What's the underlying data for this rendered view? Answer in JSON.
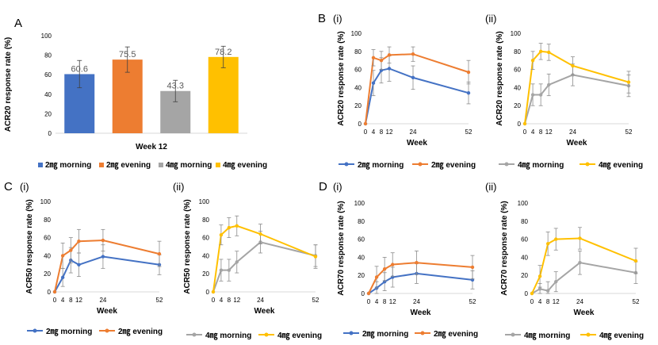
{
  "panel_labels": {
    "a": "A",
    "b": "B",
    "b_i": "(i)",
    "b_ii": "(ii)",
    "c": "C",
    "c_i": "(i)",
    "c_ii": "(ii)",
    "d": "D",
    "d_i": "(i)",
    "d_ii": "(ii)"
  },
  "colors": {
    "2mg_morning": "#4472c4",
    "2mg_evening": "#ed7d31",
    "4mg_morning": "#a5a5a5",
    "4mg_evening": "#ffc000",
    "axis": "#d9d9d9",
    "text": "#000000",
    "tick": "#595959"
  },
  "chart_data": [
    {
      "id": "A",
      "type": "bar",
      "categories": [
        "2㎎ morning",
        "2㎎ evening",
        "4㎎ morning",
        "4㎎ evening"
      ],
      "values": [
        60.6,
        75.5,
        43.3,
        78.2
      ],
      "data_labels": [
        "60.6",
        "75.5",
        "43.3",
        "78.2"
      ],
      "errors": [
        14,
        13,
        11,
        11
      ],
      "color_keys": [
        "2mg_morning",
        "2mg_evening",
        "4mg_morning",
        "4mg_evening"
      ],
      "xlabel": "Week 12",
      "ylabel": "ACR20 response rate (%)",
      "ylim": [
        0,
        100
      ],
      "yticks": [
        0,
        20,
        40,
        60,
        80,
        100
      ],
      "legend": [
        "2㎎ morning",
        "2㎎ evening",
        "4㎎ morning",
        "4㎎ evening"
      ],
      "legend_position": "bottom"
    },
    {
      "id": "B-i",
      "type": "line",
      "x": [
        0,
        4,
        8,
        12,
        24,
        52
      ],
      "xticks": [
        "0",
        "4",
        "8",
        "12",
        "24",
        "52"
      ],
      "xlabel": "Week",
      "ylabel": "ACR20 response rate (%)",
      "ylim": [
        0,
        100
      ],
      "yticks": [
        0,
        20,
        40,
        60,
        80,
        100
      ],
      "series": [
        {
          "name": "2㎎ morning",
          "color_key": "2mg_morning",
          "values": [
            0,
            45,
            59,
            61,
            51,
            34
          ],
          "errors": [
            0,
            14,
            14,
            14,
            13,
            12
          ]
        },
        {
          "name": "2㎎ evening",
          "color_key": "2mg_evening",
          "values": [
            0,
            73,
            70,
            76,
            77,
            57
          ],
          "errors": [
            0,
            9,
            10,
            9,
            8,
            13
          ]
        }
      ],
      "legend_position": "bottom"
    },
    {
      "id": "B-ii",
      "type": "line",
      "x": [
        0,
        4,
        8,
        12,
        24,
        52
      ],
      "xticks": [
        "0",
        "4",
        "8",
        "12",
        "24",
        "52"
      ],
      "xlabel": "Week",
      "ylabel": "ACR20 response rate (%)",
      "ylim": [
        0,
        100
      ],
      "yticks": [
        0,
        20,
        40,
        60,
        80,
        100
      ],
      "series": [
        {
          "name": "4㎎ morning",
          "color_key": "4mg_morning",
          "values": [
            0,
            32,
            32,
            43,
            54,
            42
          ],
          "errors": [
            0,
            12,
            12,
            12,
            12,
            12
          ]
        },
        {
          "name": "4㎎ evening",
          "color_key": "4mg_evening",
          "values": [
            0,
            70,
            80,
            79,
            64,
            46
          ],
          "errors": [
            0,
            10,
            9,
            9,
            10,
            12
          ]
        }
      ],
      "legend_position": "bottom"
    },
    {
      "id": "C-i",
      "type": "line",
      "x": [
        0,
        4,
        8,
        12,
        24,
        52
      ],
      "xticks": [
        "0",
        "4",
        "8",
        "12",
        "24",
        "52"
      ],
      "xlabel": "Week",
      "ylabel": "ACR50 response rate (%)",
      "ylim": [
        0,
        100
      ],
      "yticks": [
        0,
        20,
        40,
        60,
        80,
        100
      ],
      "series": [
        {
          "name": "2㎎ morning",
          "color_key": "2mg_morning",
          "values": [
            0,
            16,
            35,
            30,
            39,
            30
          ],
          "errors": [
            0,
            10,
            14,
            13,
            13,
            11
          ]
        },
        {
          "name": "2㎎ evening",
          "color_key": "2mg_evening",
          "values": [
            0,
            40,
            46,
            56,
            57,
            42
          ],
          "errors": [
            0,
            14,
            14,
            13,
            12,
            14
          ]
        }
      ],
      "legend_position": "bottom"
    },
    {
      "id": "C-ii",
      "type": "line",
      "x": [
        0,
        4,
        8,
        12,
        24,
        52
      ],
      "xticks": [
        "0",
        "4",
        "8",
        "12",
        "24",
        "52"
      ],
      "xlabel": "Week",
      "ylabel": "ACR50 response rate (%)",
      "ylim": [
        0,
        100
      ],
      "yticks": [
        0,
        20,
        40,
        60,
        80,
        100
      ],
      "series": [
        {
          "name": "4㎎ morning",
          "color_key": "4mg_morning",
          "values": [
            0,
            24,
            24,
            33,
            55,
            40
          ],
          "errors": [
            0,
            12,
            12,
            12,
            12,
            12
          ]
        },
        {
          "name": "4㎎ evening",
          "color_key": "4mg_evening",
          "values": [
            0,
            63,
            71,
            73,
            64,
            39
          ],
          "errors": [
            0,
            11,
            11,
            11,
            11,
            13
          ]
        }
      ],
      "legend_position": "bottom"
    },
    {
      "id": "D-i",
      "type": "line",
      "x": [
        0,
        4,
        8,
        12,
        24,
        52
      ],
      "xticks": [
        "0",
        "4",
        "8",
        "12",
        "24",
        "52"
      ],
      "xlabel": "Week",
      "ylabel": "ACR70 response rate (%)",
      "ylim": [
        0,
        100
      ],
      "yticks": [
        0,
        20,
        40,
        60,
        80,
        100
      ],
      "series": [
        {
          "name": "2㎎ morning",
          "color_key": "2mg_morning",
          "values": [
            0,
            6,
            13,
            18,
            22,
            15
          ],
          "errors": [
            0,
            7,
            10,
            11,
            11,
            10
          ]
        },
        {
          "name": "2㎎ evening",
          "color_key": "2mg_evening",
          "values": [
            0,
            18,
            27,
            32,
            34,
            29
          ],
          "errors": [
            0,
            12,
            13,
            13,
            13,
            13
          ]
        }
      ],
      "legend_position": "bottom"
    },
    {
      "id": "D-ii",
      "type": "line",
      "x": [
        0,
        4,
        8,
        12,
        24,
        52
      ],
      "xticks": [
        "0",
        "4",
        "8",
        "12",
        "24",
        "52"
      ],
      "xlabel": "Week",
      "ylabel": "ACR70 response rate (%)",
      "ylim": [
        0,
        100
      ],
      "yticks": [
        0,
        20,
        40,
        60,
        80,
        100
      ],
      "series": [
        {
          "name": "4㎎ morning",
          "color_key": "4mg_morning",
          "values": [
            0,
            5,
            3,
            13,
            34,
            23
          ],
          "errors": [
            0,
            6,
            10,
            11,
            13,
            12
          ]
        },
        {
          "name": "4㎎ evening",
          "color_key": "4mg_evening",
          "values": [
            0,
            19,
            55,
            60,
            61,
            36
          ],
          "errors": [
            0,
            12,
            13,
            12,
            12,
            14
          ]
        }
      ],
      "legend_position": "bottom"
    }
  ]
}
